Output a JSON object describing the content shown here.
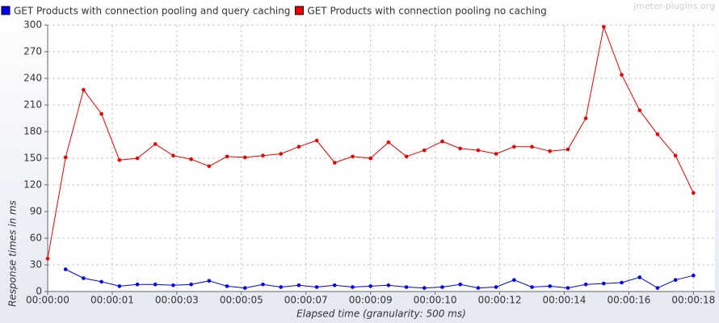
{
  "chart_data": {
    "type": "line",
    "watermark": "jmeter-plugins.org",
    "x_label": "Elapsed time (granularity: 500 ms)",
    "y_label": "Response times in ms",
    "x": [
      0,
      0.5,
      1,
      1.5,
      2,
      2.5,
      3,
      3.5,
      4,
      4.5,
      5,
      5.5,
      6,
      6.5,
      7,
      7.5,
      8,
      8.5,
      9,
      9.5,
      10,
      10.5,
      11,
      11.5,
      12,
      12.5,
      13,
      13.5,
      14,
      14.5,
      15,
      15.5,
      16,
      16.5,
      17,
      17.5,
      18
    ],
    "series": [
      {
        "name": "GET Products with connection pooling and query caching",
        "color": "#0000ee",
        "values": [
          null,
          25,
          15,
          11,
          6,
          8,
          8,
          7,
          8,
          12,
          6,
          4,
          8,
          5,
          7,
          5,
          7,
          5,
          6,
          7,
          5,
          4,
          5,
          8,
          4,
          5,
          13,
          5,
          6,
          4,
          8,
          9,
          10,
          16,
          4,
          13,
          18
        ]
      },
      {
        "name": "GET Products with connection pooling no caching",
        "color": "#ee0000",
        "values": [
          37,
          151,
          227,
          200,
          148,
          150,
          166,
          153,
          149,
          141,
          152,
          151,
          153,
          155,
          163,
          170,
          145,
          152,
          150,
          168,
          152,
          159,
          169,
          161,
          159,
          155,
          163,
          163,
          158,
          160,
          195,
          298,
          244,
          204,
          177,
          153,
          111
        ]
      }
    ],
    "xlim": [
      0,
      18.6
    ],
    "xticks": [
      {
        "value": 0,
        "label": "00:00:00"
      },
      {
        "value": 1.8,
        "label": "00:00:01"
      },
      {
        "value": 3.6,
        "label": "00:00:03"
      },
      {
        "value": 5.4,
        "label": "00:00:05"
      },
      {
        "value": 7.2,
        "label": "00:00:07"
      },
      {
        "value": 9,
        "label": "00:00:09"
      },
      {
        "value": 10.8,
        "label": "00:00:10"
      },
      {
        "value": 12.6,
        "label": "00:00:12"
      },
      {
        "value": 14.4,
        "label": "00:00:14"
      },
      {
        "value": 16.2,
        "label": "00:00:16"
      },
      {
        "value": 18,
        "label": "00:00:18"
      }
    ],
    "ylim": [
      0,
      300
    ],
    "yticks": [
      0,
      30,
      60,
      90,
      120,
      150,
      180,
      210,
      240,
      270,
      300
    ],
    "grid": true
  }
}
